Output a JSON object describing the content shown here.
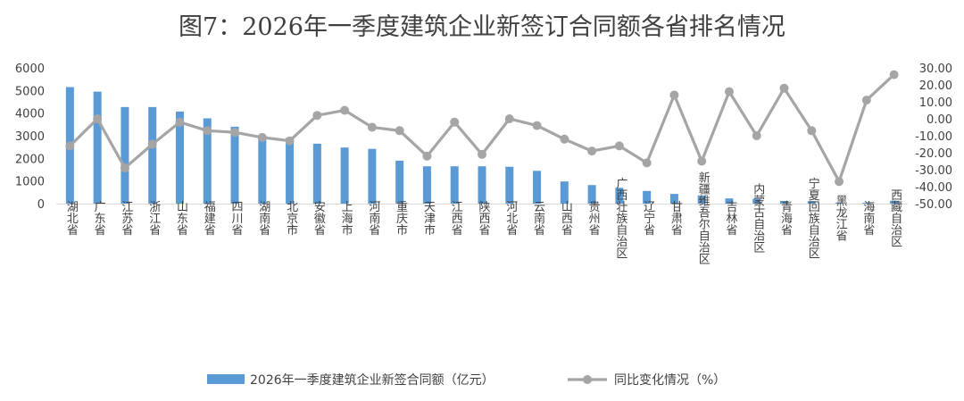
{
  "chart_data": {
    "type": "bar",
    "title": "图7：2026年一季度建筑企业新签订合同额各省排名情况",
    "categories": [
      "湖北省",
      "广东省",
      "江苏省",
      "浙江省",
      "山东省",
      "福建省",
      "四川省",
      "湖南省",
      "北京市",
      "安徽省",
      "上海市",
      "河南省",
      "重庆市",
      "天津市",
      "江西省",
      "陕西省",
      "河北省",
      "云南省",
      "山西省",
      "贵州省",
      "广西壮族自治区",
      "辽宁省",
      "甘肃省",
      "新疆维吾尔自治区",
      "吉林省",
      "内蒙古自治区",
      "青海省",
      "宁夏回族自治区",
      "黑龙江省",
      "海南省",
      "西藏自治区"
    ],
    "series": [
      {
        "name": "2026年一季度建筑企业新签合同额（亿元）",
        "type": "bar",
        "axis": "left",
        "color": "#5b9bd5",
        "values": [
          5150,
          4950,
          4270,
          4270,
          4070,
          3770,
          3400,
          3000,
          2900,
          2650,
          2480,
          2420,
          1900,
          1650,
          1650,
          1650,
          1630,
          1450,
          980,
          820,
          700,
          560,
          430,
          360,
          230,
          220,
          120,
          110,
          30,
          40,
          130
        ]
      },
      {
        "name": "同比变化情况（%）",
        "type": "line",
        "axis": "right",
        "color": "#a5a5a5",
        "values": [
          -16,
          0,
          -29,
          -15,
          -2,
          -7,
          -8,
          -11,
          -13,
          2,
          5,
          -5,
          -7,
          -22,
          -2,
          -21,
          0,
          -4,
          -12,
          -19,
          -16,
          -26,
          14,
          -25,
          16,
          -10,
          18,
          -7,
          -37,
          11,
          26
        ]
      }
    ],
    "ylim_left": [
      0,
      6000
    ],
    "yticks_left": [
      "0",
      "1000",
      "2000",
      "3000",
      "4000",
      "5000",
      "6000"
    ],
    "ylim_right": [
      -50,
      30
    ],
    "yticks_right": [
      "-50.00",
      "-40.00",
      "-30.00",
      "-20.00",
      "-10.00",
      "0.00",
      "10.00",
      "20.00",
      "30.00"
    ],
    "grid": false,
    "legend_position": "bottom"
  }
}
